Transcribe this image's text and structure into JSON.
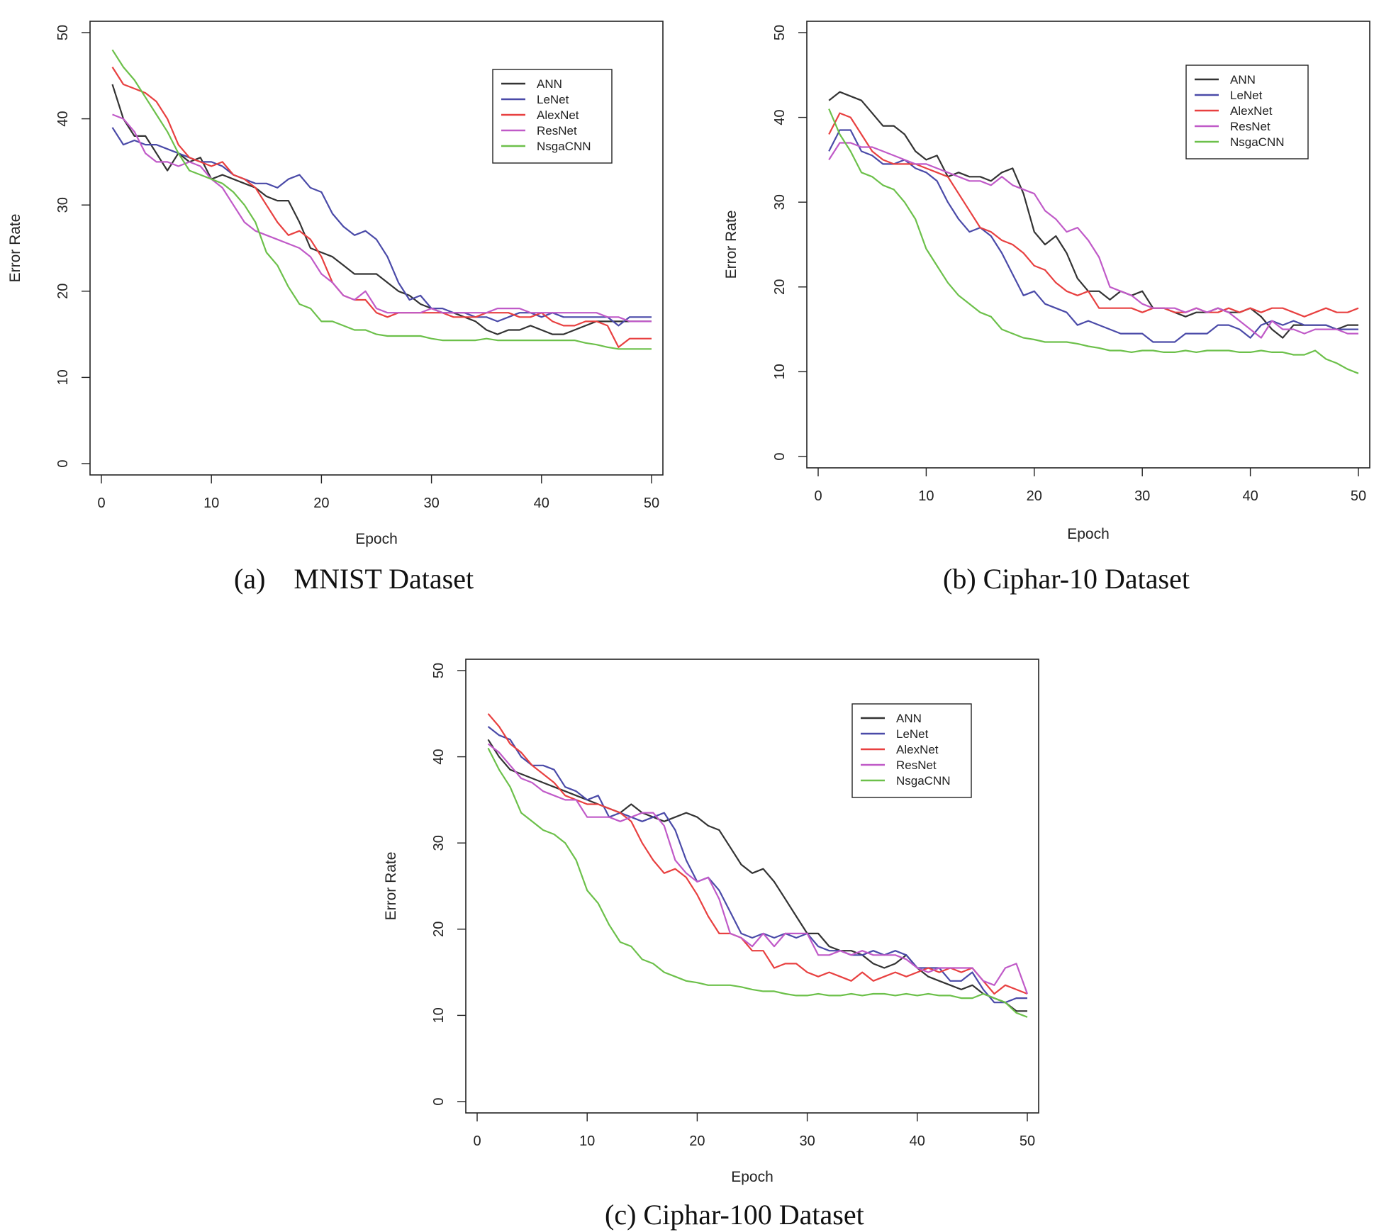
{
  "chart_data": [
    {
      "type": "line",
      "caption": "(a)    MNIST Dataset",
      "xlabel": "Epoch",
      "ylabel": "Error Rate",
      "xlim": [
        0,
        50
      ],
      "ylim": [
        0,
        50
      ],
      "xticks": [
        "0",
        "10",
        "20",
        "30",
        "40",
        "50"
      ],
      "yticks": [
        "0",
        "10",
        "20",
        "30",
        "40",
        "50"
      ],
      "legend_position": "top-right",
      "x": [
        1,
        2,
        3,
        4,
        5,
        6,
        7,
        8,
        9,
        10,
        11,
        12,
        13,
        14,
        15,
        16,
        17,
        18,
        19,
        20,
        21,
        22,
        23,
        24,
        25,
        26,
        27,
        28,
        29,
        30,
        31,
        32,
        33,
        34,
        35,
        36,
        37,
        38,
        39,
        40,
        41,
        42,
        43,
        44,
        45,
        46,
        47,
        48,
        49,
        50
      ],
      "series": [
        {
          "name": "ANN",
          "color": "#333333",
          "values": [
            44,
            40,
            38,
            38,
            36,
            34,
            36,
            35,
            35.5,
            33,
            33.5,
            33,
            32.5,
            32,
            31,
            30.5,
            30.5,
            28,
            25,
            24.5,
            24,
            23,
            22,
            22,
            22,
            21,
            20,
            19.5,
            18.5,
            18,
            17.5,
            17.5,
            17,
            16.5,
            15.5,
            15,
            15.5,
            15.5,
            16,
            15.5,
            15,
            15,
            15.5,
            16,
            16.5,
            16.5,
            16.5,
            16.5,
            16.5,
            16.5
          ]
        },
        {
          "name": "LeNet",
          "color": "#4a4aa8",
          "values": [
            39,
            37,
            37.5,
            37,
            37,
            36.5,
            36,
            35.5,
            35,
            35,
            34.5,
            33.5,
            33,
            32.5,
            32.5,
            32,
            33,
            33.5,
            32,
            31.5,
            29,
            27.5,
            26.5,
            27,
            26,
            24,
            21,
            19,
            19.5,
            18,
            18,
            17.5,
            17.5,
            17,
            17,
            16.5,
            17,
            17.5,
            17.5,
            17,
            17.5,
            17,
            17,
            17,
            17,
            17,
            16,
            17,
            17,
            17
          ]
        },
        {
          "name": "AlexNet",
          "color": "#e84040",
          "values": [
            46,
            44,
            43.5,
            43,
            42,
            40,
            37,
            35.5,
            35,
            34.5,
            35,
            33.5,
            33,
            32,
            30,
            28,
            26.5,
            27,
            26,
            24,
            21,
            19.5,
            19,
            19,
            17.5,
            17,
            17.5,
            17.5,
            17.5,
            17.5,
            17.5,
            17,
            17,
            17,
            17.5,
            17.5,
            17.5,
            17,
            17,
            17.5,
            16.5,
            16,
            16,
            16.5,
            16.5,
            16,
            13.5,
            14.5,
            14.5,
            14.5
          ]
        },
        {
          "name": "ResNet",
          "color": "#c05ac8",
          "values": [
            40.5,
            40,
            38.5,
            36,
            35,
            35,
            34.5,
            35,
            34.5,
            33,
            32,
            30,
            28,
            27,
            26.5,
            26,
            25.5,
            25,
            24,
            22,
            21,
            19.5,
            19,
            20,
            18,
            17.5,
            17.5,
            17.5,
            17.5,
            18,
            17.5,
            17.5,
            17.5,
            17.5,
            17.5,
            18,
            18,
            18,
            17.5,
            17.5,
            17.5,
            17.5,
            17.5,
            17.5,
            17.5,
            17,
            17,
            16.5,
            16.5,
            16.5
          ]
        },
        {
          "name": "NsgaCNN",
          "color": "#6cc04a",
          "values": [
            48,
            46,
            44.5,
            42.5,
            40.5,
            38.5,
            36,
            34,
            33.5,
            33,
            32.5,
            31.5,
            30,
            28,
            24.5,
            23,
            20.5,
            18.5,
            18,
            16.5,
            16.5,
            16,
            15.5,
            15.5,
            15,
            14.8,
            14.8,
            14.8,
            14.8,
            14.5,
            14.3,
            14.3,
            14.3,
            14.3,
            14.5,
            14.3,
            14.3,
            14.3,
            14.3,
            14.3,
            14.3,
            14.3,
            14.3,
            14,
            13.8,
            13.5,
            13.3,
            13.3,
            13.3,
            13.3
          ]
        }
      ]
    },
    {
      "type": "line",
      "caption": "(b) Ciphar-10 Dataset",
      "xlabel": "Epoch",
      "ylabel": "Error Rate",
      "xlim": [
        0,
        50
      ],
      "ylim": [
        0,
        50
      ],
      "xticks": [
        "0",
        "10",
        "20",
        "30",
        "40",
        "50"
      ],
      "yticks": [
        "0",
        "10",
        "20",
        "30",
        "40",
        "50"
      ],
      "legend_position": "top-right",
      "x": [
        1,
        2,
        3,
        4,
        5,
        6,
        7,
        8,
        9,
        10,
        11,
        12,
        13,
        14,
        15,
        16,
        17,
        18,
        19,
        20,
        21,
        22,
        23,
        24,
        25,
        26,
        27,
        28,
        29,
        30,
        31,
        32,
        33,
        34,
        35,
        36,
        37,
        38,
        39,
        40,
        41,
        42,
        43,
        44,
        45,
        46,
        47,
        48,
        49,
        50
      ],
      "series": [
        {
          "name": "ANN",
          "color": "#333333",
          "values": [
            42,
            43,
            42.5,
            42,
            40.5,
            39,
            39,
            38,
            36,
            35,
            35.5,
            33,
            33.5,
            33,
            33,
            32.5,
            33.5,
            34,
            31,
            26.5,
            25,
            26,
            24,
            21,
            19.5,
            19.5,
            18.5,
            19.5,
            19,
            19.5,
            17.5,
            17.5,
            17,
            16.5,
            17,
            17,
            17.5,
            17,
            17,
            17.5,
            16.5,
            15,
            14,
            15.5,
            15.5,
            15.5,
            15.5,
            15,
            15.5,
            15.5
          ]
        },
        {
          "name": "LeNet",
          "color": "#4a4aa8",
          "values": [
            36,
            38.5,
            38.5,
            36,
            35.5,
            34.5,
            34.5,
            35,
            34,
            33.5,
            32.5,
            30,
            28,
            26.5,
            27,
            26,
            24,
            21.5,
            19,
            19.5,
            18,
            17.5,
            17,
            15.5,
            16,
            15.5,
            15,
            14.5,
            14.5,
            14.5,
            13.5,
            13.5,
            13.5,
            14.5,
            14.5,
            14.5,
            15.5,
            15.5,
            15,
            14,
            15.5,
            16,
            15.5,
            16,
            15.5,
            15.5,
            15.5,
            15,
            15,
            15
          ]
        },
        {
          "name": "AlexNet",
          "color": "#e84040",
          "values": [
            38,
            40.5,
            40,
            38,
            36,
            35,
            34.5,
            34.5,
            34.5,
            34,
            33.5,
            33,
            31,
            29,
            27,
            26.5,
            25.5,
            25,
            24,
            22.5,
            22,
            20.5,
            19.5,
            19,
            19.5,
            17.5,
            17.5,
            17.5,
            17.5,
            17,
            17.5,
            17.5,
            17,
            17,
            17.5,
            17,
            17,
            17.5,
            17,
            17.5,
            17,
            17.5,
            17.5,
            17,
            16.5,
            17,
            17.5,
            17,
            17,
            17.5
          ]
        },
        {
          "name": "ResNet",
          "color": "#c05ac8",
          "values": [
            35,
            37,
            37,
            36.5,
            36.5,
            36,
            35.5,
            35,
            34.5,
            34.5,
            34,
            33.5,
            33,
            32.5,
            32.5,
            32,
            33,
            32,
            31.5,
            31,
            29,
            28,
            26.5,
            27,
            25.5,
            23.5,
            20,
            19.5,
            19,
            18,
            17.5,
            17.5,
            17.5,
            17,
            17.5,
            17,
            17.5,
            17,
            16,
            15,
            14,
            16,
            15,
            15,
            14.5,
            15,
            15,
            15,
            14.5,
            14.5
          ]
        },
        {
          "name": "NsgaCNN",
          "color": "#6cc04a",
          "values": [
            41,
            38,
            36,
            33.5,
            33,
            32,
            31.5,
            30,
            28,
            24.5,
            22.5,
            20.5,
            19,
            18,
            17,
            16.5,
            15,
            14.5,
            14,
            13.8,
            13.5,
            13.5,
            13.5,
            13.3,
            13,
            12.8,
            12.5,
            12.5,
            12.3,
            12.5,
            12.5,
            12.3,
            12.3,
            12.5,
            12.3,
            12.5,
            12.5,
            12.5,
            12.3,
            12.3,
            12.5,
            12.3,
            12.3,
            12,
            12,
            12.5,
            11.5,
            11,
            10.3,
            9.8
          ]
        }
      ]
    },
    {
      "type": "line",
      "caption": "(c) Ciphar-100 Dataset",
      "xlabel": "Epoch",
      "ylabel": "Error Rate",
      "xlim": [
        0,
        50
      ],
      "ylim": [
        0,
        50
      ],
      "xticks": [
        "0",
        "10",
        "20",
        "30",
        "40",
        "50"
      ],
      "yticks": [
        "0",
        "10",
        "20",
        "30",
        "40",
        "50"
      ],
      "legend_position": "top-right",
      "x": [
        1,
        2,
        3,
        4,
        5,
        6,
        7,
        8,
        9,
        10,
        11,
        12,
        13,
        14,
        15,
        16,
        17,
        18,
        19,
        20,
        21,
        22,
        23,
        24,
        25,
        26,
        27,
        28,
        29,
        30,
        31,
        32,
        33,
        34,
        35,
        36,
        37,
        38,
        39,
        40,
        41,
        42,
        43,
        44,
        45,
        46,
        47,
        48,
        49,
        50
      ],
      "series": [
        {
          "name": "ANN",
          "color": "#333333",
          "values": [
            42,
            40,
            38.5,
            38,
            37.5,
            37,
            36.5,
            36,
            35.5,
            35,
            34.5,
            34,
            33.5,
            34.5,
            33.5,
            33,
            32.5,
            33,
            33.5,
            33,
            32,
            31.5,
            29.5,
            27.5,
            26.5,
            27,
            25.5,
            23.5,
            21.5,
            19.5,
            19.5,
            18,
            17.5,
            17.5,
            17,
            16,
            15.5,
            16,
            17,
            15.5,
            14.5,
            14,
            13.5,
            13,
            13.5,
            12.5,
            12,
            11.5,
            10.5,
            10.5
          ]
        },
        {
          "name": "LeNet",
          "color": "#4a4aa8",
          "values": [
            43.5,
            42.5,
            42,
            40,
            39,
            39,
            38.5,
            36.5,
            36,
            35,
            35.5,
            33,
            33.5,
            33,
            32.5,
            33,
            33.5,
            31.5,
            28,
            25.5,
            26,
            24.5,
            22,
            19.5,
            19,
            19.5,
            19,
            19.5,
            19,
            19.5,
            18,
            17.5,
            17.5,
            17,
            17,
            17.5,
            17,
            17.5,
            17,
            15.5,
            15.5,
            15.5,
            14,
            14,
            15,
            13,
            11.5,
            11.5,
            12,
            12
          ]
        },
        {
          "name": "AlexNet",
          "color": "#e84040",
          "values": [
            45,
            43.5,
            41.5,
            40.5,
            39,
            38,
            37,
            35.5,
            35,
            34.5,
            34.5,
            34,
            33.5,
            32.5,
            30,
            28,
            26.5,
            27,
            26,
            24,
            21.5,
            19.5,
            19.5,
            19,
            17.5,
            17.5,
            15.5,
            16,
            16,
            15,
            14.5,
            15,
            14.5,
            14,
            15,
            14,
            14.5,
            15,
            14.5,
            15,
            15.5,
            15,
            15.5,
            15,
            15.5,
            14,
            12.5,
            13.5,
            13,
            12.5
          ]
        },
        {
          "name": "ResNet",
          "color": "#c05ac8",
          "values": [
            41.5,
            40.5,
            39,
            37.5,
            37,
            36,
            35.5,
            35,
            35,
            33,
            33,
            33,
            32.5,
            33,
            33.5,
            33.5,
            32,
            28,
            26.5,
            25.5,
            26,
            23.5,
            19.5,
            19,
            18,
            19.5,
            18,
            19.5,
            19.5,
            19.5,
            17,
            17,
            17.5,
            17,
            17.5,
            17,
            17,
            17,
            16.5,
            15.5,
            15,
            15.5,
            15.5,
            15.5,
            15.5,
            14,
            13.5,
            15.5,
            16,
            12.5
          ]
        },
        {
          "name": "NsgaCNN",
          "color": "#6cc04a",
          "values": [
            41,
            38.5,
            36.5,
            33.5,
            32.5,
            31.5,
            31,
            30,
            28,
            24.5,
            23,
            20.5,
            18.5,
            18,
            16.5,
            16,
            15,
            14.5,
            14,
            13.8,
            13.5,
            13.5,
            13.5,
            13.3,
            13,
            12.8,
            12.8,
            12.5,
            12.3,
            12.3,
            12.5,
            12.3,
            12.3,
            12.5,
            12.3,
            12.5,
            12.5,
            12.3,
            12.5,
            12.3,
            12.5,
            12.3,
            12.3,
            12,
            12,
            12.5,
            12,
            11.5,
            10.3,
            9.8
          ]
        }
      ]
    }
  ]
}
